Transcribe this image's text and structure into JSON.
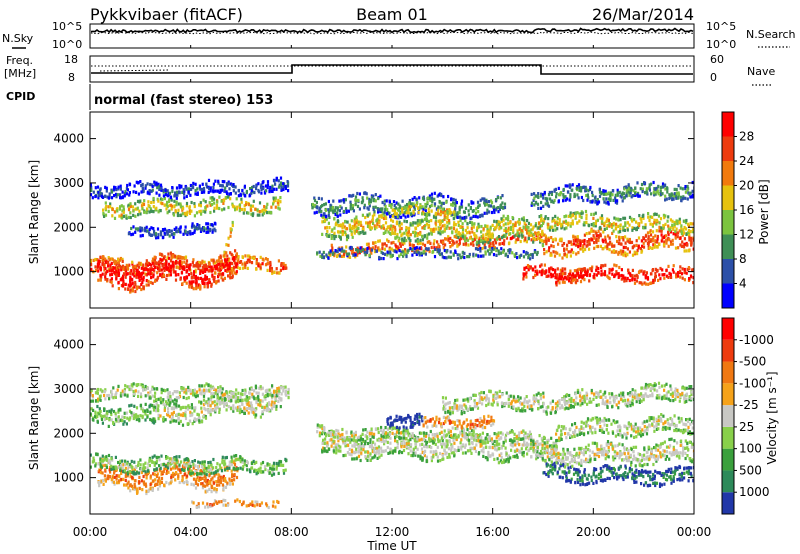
{
  "header": {
    "station": "Pykkvibaer (fitACF)",
    "beam": "Beam 01",
    "date": "26/Mar/2014"
  },
  "noise_panel": {
    "left_label": "N.Sky",
    "right_label": "N.Search",
    "left_ticks": [
      "10^5",
      "10^0"
    ],
    "right_ticks": [
      "10^5",
      "10^0"
    ]
  },
  "freq_panel": {
    "left_label_1": "Freq.",
    "left_label_2": "[MHz]",
    "left_ticks": [
      "18",
      "8"
    ],
    "right_label": "Nave",
    "right_ticks": [
      "60",
      "0"
    ]
  },
  "cpid_panel": {
    "label": "CPID",
    "text": "normal (fast stereo) 153"
  },
  "x_axis": {
    "title": "Time UT",
    "ticks": [
      "00:00",
      "04:00",
      "08:00",
      "12:00",
      "16:00",
      "20:00",
      "00:00"
    ]
  },
  "chart_data": [
    {
      "type": "heatmap",
      "name": "power",
      "ylabel": "Slant Range [km]",
      "yticks": [
        1000,
        2000,
        3000,
        4000
      ],
      "ylim": [
        180,
        4600
      ],
      "xlim_hours": [
        0,
        24
      ],
      "colorbar": {
        "label": "Power [dB]",
        "ticks": [
          "4",
          "8",
          "12",
          "16",
          "20",
          "24",
          "28"
        ],
        "colors": [
          "#0000ff",
          "#2c50a8",
          "#3f8f56",
          "#7cc43f",
          "#e6c20e",
          "#f27a0d",
          "#ee3b0e",
          "#ff0000"
        ]
      },
      "bands": [
        {
          "t0": 0.0,
          "t1": 7.8,
          "r_start": 1150,
          "r_end": 1200,
          "w": 190,
          "level": 6
        },
        {
          "t0": 0.3,
          "t1": 5.8,
          "r_start": 980,
          "r_end": 1080,
          "w": 380,
          "level": 7
        },
        {
          "t0": 0.5,
          "t1": 7.6,
          "r_start": 2450,
          "r_end": 2550,
          "w": 210,
          "level": 4
        },
        {
          "t0": 0.0,
          "t1": 7.9,
          "r_start": 2850,
          "r_end": 2950,
          "w": 180,
          "level": 1
        },
        {
          "t0": 1.5,
          "t1": 5.0,
          "r_start": 1900,
          "r_end": 2000,
          "w": 140,
          "level": 1
        },
        {
          "t0": 5.2,
          "t1": 5.7,
          "r_start": 1250,
          "r_end": 2200,
          "w": 160,
          "level": 5
        },
        {
          "t0": 9.5,
          "t1": 18.0,
          "r_start": 1500,
          "r_end": 1800,
          "w": 150,
          "level": 6
        },
        {
          "t0": 9.2,
          "t1": 18.0,
          "r_start": 2100,
          "r_end": 1950,
          "w": 300,
          "level": 4
        },
        {
          "t0": 8.8,
          "t1": 16.5,
          "r_start": 2550,
          "r_end": 2500,
          "w": 250,
          "level": 2
        },
        {
          "t0": 9.0,
          "t1": 17.8,
          "r_start": 1450,
          "r_end": 1450,
          "w": 120,
          "level": 2
        },
        {
          "t0": 12.0,
          "t1": 14.5,
          "r_start": 2350,
          "r_end": 2450,
          "w": 170,
          "level": 4
        },
        {
          "t0": 17.2,
          "t1": 24.0,
          "r_start": 1000,
          "r_end": 950,
          "w": 200,
          "level": 7
        },
        {
          "t0": 18.0,
          "t1": 24.0,
          "r_start": 1650,
          "r_end": 1750,
          "w": 280,
          "level": 6
        },
        {
          "t0": 17.8,
          "t1": 24.0,
          "r_start": 2200,
          "r_end": 2100,
          "w": 200,
          "level": 4
        },
        {
          "t0": 17.5,
          "t1": 24.0,
          "r_start": 2700,
          "r_end": 2900,
          "w": 220,
          "level": 2
        },
        {
          "t0": 18.5,
          "t1": 19.6,
          "r_start": 800,
          "r_end": 1000,
          "w": 160,
          "level": 7
        }
      ]
    },
    {
      "type": "heatmap",
      "name": "velocity",
      "ylabel": "Slant Range [km]",
      "yticks": [
        1000,
        2000,
        3000,
        4000
      ],
      "ylim": [
        180,
        4600
      ],
      "xlim_hours": [
        0,
        24
      ],
      "colorbar": {
        "label": "Velocity [m s⁻¹]",
        "ticks": [
          "1000",
          "500",
          "100",
          "25",
          "-25",
          "-100",
          "-500",
          "-1000"
        ],
        "colors": [
          "#2137a8",
          "#2d8a5a",
          "#3aa03c",
          "#88d04a",
          "#c8c8c4",
          "#f5a21a",
          "#f07812",
          "#ee3b0e",
          "#ff0000"
        ]
      },
      "bands": [
        {
          "t0": 0.3,
          "t1": 5.8,
          "r_start": 1050,
          "r_end": 1100,
          "w": 350,
          "level": 6
        },
        {
          "t0": 0.0,
          "t1": 7.8,
          "r_start": 1350,
          "r_end": 1300,
          "w": 200,
          "level": 3
        },
        {
          "t0": 2.5,
          "t1": 7.6,
          "r_start": 2450,
          "r_end": 2800,
          "w": 300,
          "level": 4
        },
        {
          "t0": 0.0,
          "t1": 2.6,
          "r_start": 2500,
          "r_end": 2400,
          "w": 250,
          "level": 3
        },
        {
          "t0": 0.0,
          "t1": 7.9,
          "r_start": 2950,
          "r_end": 2950,
          "w": 180,
          "level": 4
        },
        {
          "t0": 9.2,
          "t1": 18.5,
          "r_start": 1750,
          "r_end": 1700,
          "w": 300,
          "level": 4
        },
        {
          "t0": 9.0,
          "t1": 17.5,
          "r_start": 2050,
          "r_end": 1950,
          "w": 150,
          "level": 4
        },
        {
          "t0": 11.8,
          "t1": 13.2,
          "r_start": 2300,
          "r_end": 2400,
          "w": 180,
          "level": 0
        },
        {
          "t0": 13.2,
          "t1": 16.0,
          "r_start": 2250,
          "r_end": 2300,
          "w": 160,
          "level": 6
        },
        {
          "t0": 14.0,
          "t1": 18.0,
          "r_start": 2700,
          "r_end": 2800,
          "w": 220,
          "level": 4
        },
        {
          "t0": 18.0,
          "t1": 24.0,
          "r_start": 1150,
          "r_end": 1050,
          "w": 220,
          "level": 1
        },
        {
          "t0": 17.5,
          "t1": 24.0,
          "r_start": 1550,
          "r_end": 1600,
          "w": 280,
          "level": 4
        },
        {
          "t0": 18.5,
          "t1": 24.0,
          "r_start": 2100,
          "r_end": 2250,
          "w": 220,
          "level": 4
        },
        {
          "t0": 18.0,
          "t1": 24.0,
          "r_start": 2700,
          "r_end": 3000,
          "w": 220,
          "level": 4
        },
        {
          "t0": 4.0,
          "t1": 7.5,
          "r_start": 450,
          "r_end": 450,
          "w": 80,
          "level": 6
        }
      ]
    }
  ]
}
